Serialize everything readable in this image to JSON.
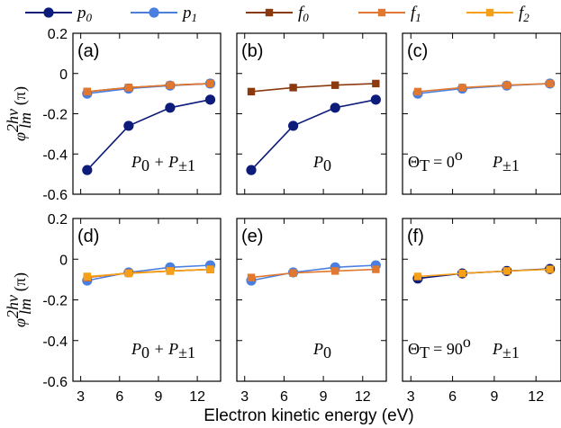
{
  "chart_data": {
    "type": "line",
    "xlabel": "Electron kinetic energy (eV)",
    "ylabel": "φ_lm^{2hν} (π)",
    "ylabel_parts": {
      "phi": "φ",
      "sup": "2hν",
      "sub": "lm",
      "unit": "(π)"
    },
    "xlim": [
      2.4,
      13.8
    ],
    "ylim": [
      -0.6,
      0.2
    ],
    "x_ticks": [
      3,
      6,
      9,
      12
    ],
    "x_tick_labels": [
      "3",
      "6",
      "9",
      "12"
    ],
    "y_ticks": [
      0.2,
      0,
      -0.2,
      -0.4,
      -0.6
    ],
    "y_tick_labels": [
      "0.2",
      "0",
      "-0.2",
      "-0.4",
      "-0.6"
    ],
    "legend": [
      {
        "name": "p0",
        "label_main": "p",
        "label_sub": "0",
        "color": "#0d1b7a",
        "marker": "circle"
      },
      {
        "name": "p1",
        "label_main": "p",
        "label_sub": "1",
        "color": "#4a7fe0",
        "marker": "circle"
      },
      {
        "name": "f0",
        "label_main": "f",
        "label_sub": "0",
        "color": "#8b3a10",
        "marker": "square"
      },
      {
        "name": "f1",
        "label_main": "f",
        "label_sub": "1",
        "color": "#e07830",
        "marker": "square"
      },
      {
        "name": "f2",
        "label_main": "f",
        "label_sub": "2",
        "color": "#f5a018",
        "marker": "square"
      }
    ],
    "panels": [
      {
        "tag": "(a)",
        "label": "P0 + P±1",
        "label_parts": [
          "P",
          "0",
          " + P",
          "±1"
        ],
        "theta": "",
        "series": [
          {
            "name": "p0",
            "x": [
              3.5,
              6.7,
              9.9,
              13.0
            ],
            "y": [
              -0.48,
              -0.26,
              -0.17,
              -0.13
            ]
          },
          {
            "name": "p1",
            "x": [
              3.5,
              6.7,
              9.9,
              13.0
            ],
            "y": [
              -0.1,
              -0.075,
              -0.06,
              -0.05
            ]
          },
          {
            "name": "f0",
            "x": [
              3.5,
              6.7,
              9.9,
              13.0
            ],
            "y": [
              -0.09,
              -0.07,
              -0.058,
              -0.05
            ]
          },
          {
            "name": "f1",
            "x": [
              3.5,
              6.7,
              9.9,
              13.0
            ],
            "y": [
              -0.09,
              -0.07,
              -0.058,
              -0.05
            ]
          }
        ]
      },
      {
        "tag": "(b)",
        "label": "P0",
        "label_parts": [
          "P",
          "0",
          "",
          ""
        ],
        "theta": "",
        "series": [
          {
            "name": "p0",
            "x": [
              3.5,
              6.7,
              9.9,
              13.0
            ],
            "y": [
              -0.48,
              -0.26,
              -0.17,
              -0.13
            ]
          },
          {
            "name": "f0",
            "x": [
              3.5,
              6.7,
              9.9,
              13.0
            ],
            "y": [
              -0.09,
              -0.07,
              -0.058,
              -0.05
            ]
          }
        ]
      },
      {
        "tag": "(c)",
        "label": "P±1",
        "label_parts": [
          "P",
          "±1",
          "",
          ""
        ],
        "theta": "Θ_T = 0°",
        "theta_parts": [
          "Θ",
          "T",
          " = 0",
          "o"
        ],
        "series": [
          {
            "name": "p1",
            "x": [
              3.5,
              6.7,
              9.9,
              13.0
            ],
            "y": [
              -0.1,
              -0.075,
              -0.06,
              -0.05
            ]
          },
          {
            "name": "f1",
            "x": [
              3.5,
              6.7,
              9.9,
              13.0
            ],
            "y": [
              -0.09,
              -0.07,
              -0.058,
              -0.05
            ]
          }
        ]
      },
      {
        "tag": "(d)",
        "label": "P0 + P±1",
        "label_parts": [
          "P",
          "0",
          " + P",
          "±1"
        ],
        "theta": "",
        "series": [
          {
            "name": "p1",
            "x": [
              3.5,
              6.7,
              9.9,
              13.0
            ],
            "y": [
              -0.105,
              -0.065,
              -0.04,
              -0.03
            ]
          },
          {
            "name": "f0",
            "x": [
              3.5,
              6.7,
              9.9,
              13.0
            ],
            "y": [
              -0.09,
              -0.068,
              -0.058,
              -0.05
            ]
          },
          {
            "name": "f1",
            "x": [
              3.5,
              6.7,
              9.9,
              13.0
            ],
            "y": [
              -0.09,
              -0.068,
              -0.058,
              -0.05
            ]
          },
          {
            "name": "f2",
            "x": [
              3.5,
              6.7,
              9.9,
              13.0
            ],
            "y": [
              -0.085,
              -0.07,
              -0.058,
              -0.05
            ]
          }
        ]
      },
      {
        "tag": "(e)",
        "label": "P0",
        "label_parts": [
          "P",
          "0",
          "",
          ""
        ],
        "theta": "",
        "series": [
          {
            "name": "p1",
            "x": [
              3.5,
              6.7,
              9.9,
              13.0
            ],
            "y": [
              -0.105,
              -0.065,
              -0.04,
              -0.03
            ]
          },
          {
            "name": "f1",
            "x": [
              3.5,
              6.7,
              9.9,
              13.0
            ],
            "y": [
              -0.09,
              -0.068,
              -0.058,
              -0.05
            ]
          }
        ]
      },
      {
        "tag": "(f)",
        "label": "P±1",
        "label_parts": [
          "P",
          "±1",
          "",
          ""
        ],
        "theta": "Θ_T = 90°",
        "theta_parts": [
          "Θ",
          "T",
          " = 90",
          "o"
        ],
        "series": [
          {
            "name": "p0",
            "x": [
              3.5,
              6.7,
              9.9,
              13.0
            ],
            "y": [
              -0.095,
              -0.07,
              -0.058,
              -0.048
            ]
          },
          {
            "name": "f2",
            "x": [
              3.5,
              6.7,
              9.9,
              13.0
            ],
            "y": [
              -0.085,
              -0.07,
              -0.058,
              -0.05
            ]
          }
        ]
      }
    ]
  }
}
